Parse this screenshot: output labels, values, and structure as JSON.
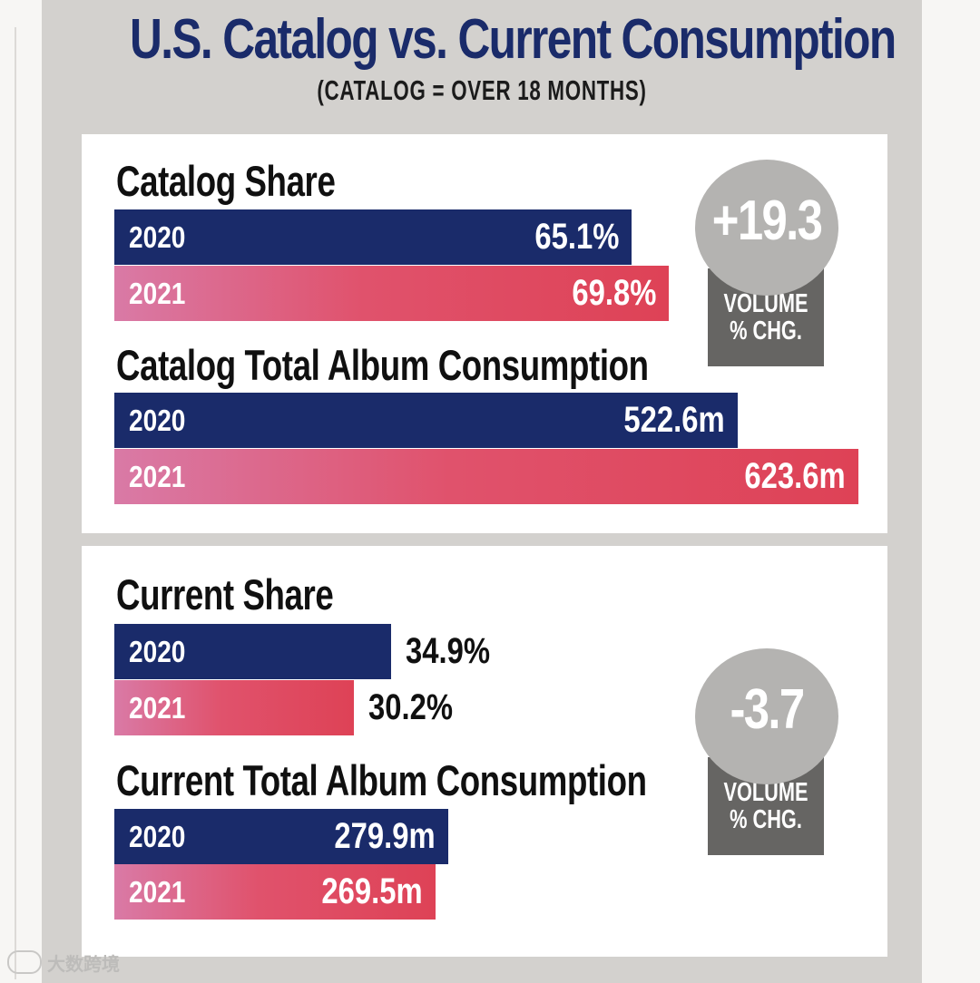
{
  "title": "U.S. Catalog vs. Current Consumption",
  "subtitle": "(CATALOG = OVER 18 MONTHS)",
  "watermark": "大数跨境",
  "colors": {
    "bar_2020": "#1a2b6a",
    "bar_2021": "#de4256",
    "title": "#1a2b6a",
    "badge_circle": "#b4b3b1",
    "badge_box": "#666563"
  },
  "catalog_badge": {
    "value": "+19.3",
    "label": "VOLUME\n% CHG."
  },
  "current_badge": {
    "value": "-3.7",
    "label": "VOLUME\n% CHG."
  },
  "chart_data": [
    {
      "type": "bar",
      "title": "Catalog Share",
      "unit": "%",
      "categories": [
        "2020",
        "2021"
      ],
      "values": [
        65.1,
        69.8
      ],
      "labels": [
        "65.1%",
        "69.8%"
      ]
    },
    {
      "type": "bar",
      "title": "Catalog Total Album Consumption",
      "unit": "m",
      "categories": [
        "2020",
        "2021"
      ],
      "values": [
        522.6,
        623.6
      ],
      "labels": [
        "522.6m",
        "623.6m"
      ]
    },
    {
      "type": "bar",
      "title": "Current Share",
      "unit": "%",
      "categories": [
        "2020",
        "2021"
      ],
      "values": [
        34.9,
        30.2
      ],
      "labels": [
        "34.9%",
        "30.2%"
      ]
    },
    {
      "type": "bar",
      "title": "Current Total Album Consumption",
      "unit": "m",
      "categories": [
        "2020",
        "2021"
      ],
      "values": [
        279.9,
        269.5
      ],
      "labels": [
        "279.9m",
        "269.5m"
      ]
    }
  ]
}
